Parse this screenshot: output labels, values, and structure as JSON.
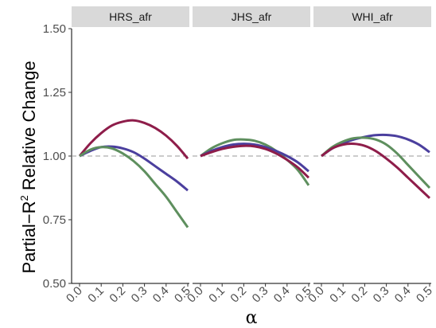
{
  "chart_data": {
    "type": "line",
    "xlabel": "α",
    "ylabel_main": "Partial−R",
    "ylabel_sup": "2",
    "ylabel_tail": " Relative Change",
    "ylim": [
      0.5,
      1.5
    ],
    "xlim": [
      0,
      0.5
    ],
    "yticks": [
      "0.50",
      "0.75",
      "1.00",
      "1.25",
      "1.50"
    ],
    "ytick_values": [
      0.5,
      0.75,
      1.0,
      1.25,
      1.5
    ],
    "xticks": [
      "0.0",
      "0.1",
      "0.2",
      "0.3",
      "0.4",
      "0.5"
    ],
    "xtick_values": [
      0,
      0.1,
      0.2,
      0.3,
      0.4,
      0.5
    ],
    "reference_line": 1.0,
    "grid": false,
    "legend": "none",
    "colors": {
      "purple": "#4b3f9e",
      "green": "#5e8f5e",
      "crimson": "#8e1d4a",
      "strip_bg": "#d9d9d9",
      "reference": "#999999"
    },
    "panels": [
      {
        "title": "HRS_afr",
        "series": [
          {
            "color": "crimson",
            "x": [
              0,
              0.05,
              0.1,
              0.15,
              0.2,
              0.25,
              0.3,
              0.35,
              0.4,
              0.45,
              0.5
            ],
            "y": [
              1.0,
              1.05,
              1.09,
              1.12,
              1.135,
              1.14,
              1.13,
              1.11,
              1.08,
              1.04,
              0.99
            ]
          },
          {
            "color": "purple",
            "x": [
              0,
              0.05,
              0.1,
              0.15,
              0.2,
              0.25,
              0.3,
              0.35,
              0.4,
              0.45,
              0.5
            ],
            "y": [
              1.0,
              1.02,
              1.035,
              1.037,
              1.03,
              1.015,
              0.99,
              0.96,
              0.93,
              0.9,
              0.865
            ]
          },
          {
            "color": "green",
            "x": [
              0,
              0.05,
              0.1,
              0.15,
              0.2,
              0.25,
              0.3,
              0.35,
              0.4,
              0.45,
              0.5
            ],
            "y": [
              1.0,
              1.025,
              1.035,
              1.03,
              1.01,
              0.98,
              0.94,
              0.89,
              0.84,
              0.78,
              0.72
            ]
          }
        ]
      },
      {
        "title": "JHS_afr",
        "series": [
          {
            "color": "green",
            "x": [
              0,
              0.05,
              0.1,
              0.15,
              0.2,
              0.25,
              0.3,
              0.35,
              0.4,
              0.45,
              0.5
            ],
            "y": [
              1.0,
              1.03,
              1.05,
              1.063,
              1.065,
              1.06,
              1.045,
              1.02,
              0.985,
              0.945,
              0.885
            ]
          },
          {
            "color": "purple",
            "x": [
              0,
              0.05,
              0.1,
              0.15,
              0.2,
              0.25,
              0.3,
              0.35,
              0.4,
              0.45,
              0.5
            ],
            "y": [
              1.0,
              1.02,
              1.035,
              1.045,
              1.048,
              1.045,
              1.035,
              1.02,
              1.0,
              0.975,
              0.94
            ]
          },
          {
            "color": "crimson",
            "x": [
              0,
              0.05,
              0.1,
              0.15,
              0.2,
              0.25,
              0.3,
              0.35,
              0.4,
              0.45,
              0.5
            ],
            "y": [
              1.0,
              1.015,
              1.028,
              1.036,
              1.04,
              1.038,
              1.028,
              1.01,
              0.985,
              0.955,
              0.915
            ]
          }
        ]
      },
      {
        "title": "WHI_afr",
        "series": [
          {
            "color": "purple",
            "x": [
              0,
              0.05,
              0.1,
              0.15,
              0.2,
              0.25,
              0.3,
              0.35,
              0.4,
              0.45,
              0.5
            ],
            "y": [
              1.0,
              1.03,
              1.05,
              1.065,
              1.075,
              1.082,
              1.083,
              1.078,
              1.065,
              1.045,
              1.015
            ]
          },
          {
            "color": "green",
            "x": [
              0,
              0.05,
              0.1,
              0.15,
              0.2,
              0.25,
              0.3,
              0.35,
              0.4,
              0.45,
              0.5
            ],
            "y": [
              1.0,
              1.035,
              1.057,
              1.07,
              1.072,
              1.065,
              1.045,
              1.01,
              0.965,
              0.92,
              0.875
            ]
          },
          {
            "color": "crimson",
            "x": [
              0,
              0.05,
              0.1,
              0.15,
              0.2,
              0.25,
              0.3,
              0.35,
              0.4,
              0.45,
              0.5
            ],
            "y": [
              1.0,
              1.03,
              1.045,
              1.048,
              1.04,
              1.02,
              0.99,
              0.955,
              0.915,
              0.875,
              0.835
            ]
          }
        ]
      }
    ]
  }
}
